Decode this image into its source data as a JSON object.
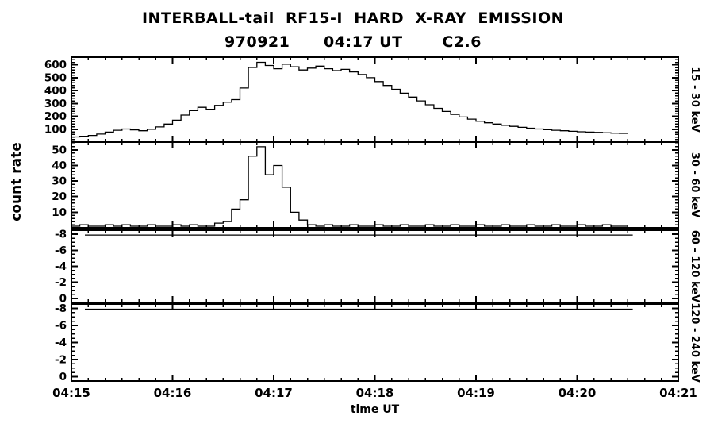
{
  "page": {
    "background": "#ffffff",
    "foreground": "#000000"
  },
  "header": {
    "title": "INTERBALL-tail  RF15-I  HARD  X-RAY  EMISSION",
    "subtitle": "970921      04:17 UT       C2.6"
  },
  "axes": {
    "ylabel": "count rate",
    "xlabel": "time UT"
  },
  "chart_data": {
    "type": "line",
    "title": "INTERBALL-tail RF15-I HARD X-RAY EMISSION",
    "subtitle": "970921 04:17 UT C2.6",
    "style": "histogram-step",
    "xlabel": "time UT",
    "ylabel": "count rate",
    "x_range_seconds": [
      0,
      360
    ],
    "x_tick_seconds": [
      0,
      60,
      120,
      180,
      240,
      300,
      360
    ],
    "x_tick_labels": [
      "04:15",
      "04:16",
      "04:17",
      "04:18",
      "04:19",
      "04:20",
      "04:21"
    ],
    "x_minor_step_seconds": 10,
    "bin_seconds": 5,
    "panels": [
      {
        "label": "15 - 30 keV",
        "ylim": [
          0,
          660
        ],
        "yticks": [
          100,
          200,
          300,
          400,
          500,
          600
        ],
        "y_minor_step": 20,
        "values": [
          40,
          45,
          52,
          62,
          78,
          92,
          102,
          95,
          88,
          100,
          118,
          140,
          170,
          210,
          245,
          270,
          255,
          285,
          310,
          330,
          420,
          580,
          620,
          595,
          570,
          605,
          585,
          560,
          575,
          590,
          570,
          555,
          565,
          545,
          525,
          500,
          470,
          440,
          410,
          380,
          350,
          320,
          290,
          262,
          238,
          215,
          195,
          178,
          162,
          150,
          140,
          130,
          122,
          115,
          108,
          102,
          96,
          92,
          88,
          84,
          80,
          78,
          75,
          72,
          70,
          68
        ]
      },
      {
        "label": "30 - 60 keV",
        "ylim": [
          0,
          55
        ],
        "yticks": [
          10,
          20,
          30,
          40,
          50
        ],
        "y_minor_step": 2,
        "values": [
          1,
          2,
          1,
          1,
          2,
          1,
          2,
          1,
          1,
          2,
          1,
          1,
          2,
          1,
          2,
          1,
          1,
          3,
          4,
          12,
          18,
          46,
          52,
          34,
          40,
          26,
          10,
          5,
          2,
          1,
          2,
          1,
          1,
          2,
          1,
          1,
          2,
          1,
          1,
          2,
          1,
          1,
          2,
          1,
          1,
          2,
          1,
          1,
          2,
          1,
          1,
          2,
          1,
          1,
          2,
          1,
          1,
          2,
          1,
          1,
          2,
          1,
          1,
          2,
          1,
          1
        ]
      },
      {
        "label": "60 - 120 keV",
        "ylim": [
          0.5,
          -8.5
        ],
        "yticks": [
          0,
          -2,
          -4,
          -6,
          -8
        ],
        "y_minor_step": 0.5,
        "flat_line": {
          "value": -7.9,
          "t_start_seconds": 8,
          "t_end_seconds": 333
        }
      },
      {
        "label": "120 - 240 keV",
        "ylim": [
          0.5,
          -8.5
        ],
        "yticks": [
          0,
          -2,
          -4,
          -6,
          -8
        ],
        "y_minor_step": 0.5,
        "flat_line": {
          "value": -7.9,
          "t_start_seconds": 8,
          "t_end_seconds": 333
        }
      }
    ]
  }
}
